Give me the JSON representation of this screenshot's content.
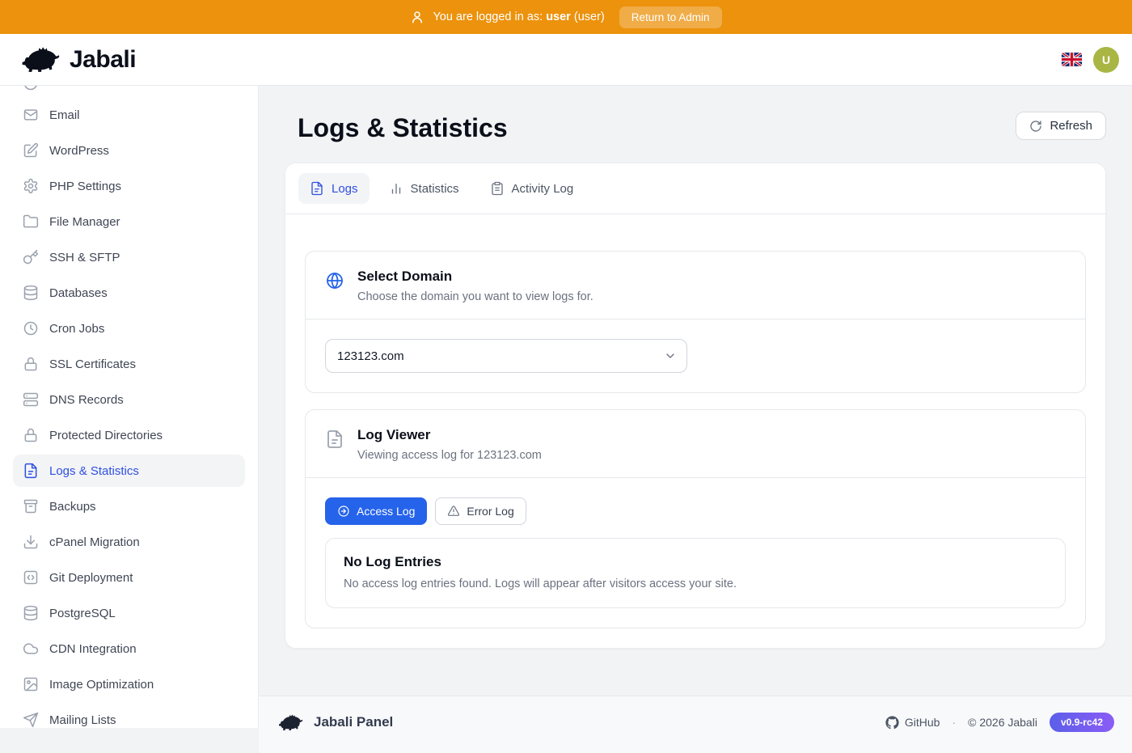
{
  "topbar": {
    "prefix": "You are logged in as:",
    "username": "user",
    "role": "(user)",
    "return_button": "Return to Admin"
  },
  "header": {
    "brand": "Jabali",
    "language_flag": "united-kingdom",
    "avatar_initial": "U"
  },
  "sidebar": {
    "items": [
      {
        "label": "Email",
        "icon": "mail",
        "active": false
      },
      {
        "label": "WordPress",
        "icon": "edit",
        "active": false
      },
      {
        "label": "PHP Settings",
        "icon": "gear",
        "active": false
      },
      {
        "label": "File Manager",
        "icon": "folder",
        "active": false
      },
      {
        "label": "SSH & SFTP",
        "icon": "key",
        "active": false
      },
      {
        "label": "Databases",
        "icon": "database",
        "active": false
      },
      {
        "label": "Cron Jobs",
        "icon": "clock",
        "active": false
      },
      {
        "label": "SSL Certificates",
        "icon": "lock",
        "active": false
      },
      {
        "label": "DNS Records",
        "icon": "server",
        "active": false
      },
      {
        "label": "Protected Directories",
        "icon": "lock",
        "active": false
      },
      {
        "label": "Logs & Statistics",
        "icon": "filetext",
        "active": true
      },
      {
        "label": "Backups",
        "icon": "archive",
        "active": false
      },
      {
        "label": "cPanel Migration",
        "icon": "download",
        "active": false
      },
      {
        "label": "Git Deployment",
        "icon": "code",
        "active": false
      },
      {
        "label": "PostgreSQL",
        "icon": "database",
        "active": false
      },
      {
        "label": "CDN Integration",
        "icon": "cloud",
        "active": false
      },
      {
        "label": "Image Optimization",
        "icon": "image",
        "active": false
      },
      {
        "label": "Mailing Lists",
        "icon": "send",
        "active": false
      }
    ]
  },
  "page": {
    "title": "Logs & Statistics",
    "refresh_button": "Refresh"
  },
  "tabs": [
    {
      "label": "Logs",
      "icon": "filetext",
      "active": true
    },
    {
      "label": "Statistics",
      "icon": "chart",
      "active": false
    },
    {
      "label": "Activity Log",
      "icon": "clipboard",
      "active": false
    }
  ],
  "select_domain": {
    "title": "Select Domain",
    "subtitle": "Choose the domain you want to view logs for.",
    "selected_option": "123123.com"
  },
  "log_viewer": {
    "title": "Log Viewer",
    "subtitle": "Viewing access log for 123123.com",
    "buttons": {
      "access": "Access Log",
      "error": "Error Log"
    },
    "empty": {
      "title": "No Log Entries",
      "message": "No access log entries found. Logs will appear after visitors access your site."
    }
  },
  "footer": {
    "brand": "Jabali Panel",
    "github": "GitHub",
    "separator": "·",
    "copyright": "© 2026 Jabali",
    "version": "v0.9-rc42"
  },
  "colors": {
    "topbar_orange": "#ec920c",
    "accent_blue": "#2e4fe0",
    "button_blue": "#2563eb",
    "avatar_green": "#a9b643",
    "badge_gradient_start": "#5b5fe9",
    "badge_gradient_end": "#8b5cf6"
  }
}
